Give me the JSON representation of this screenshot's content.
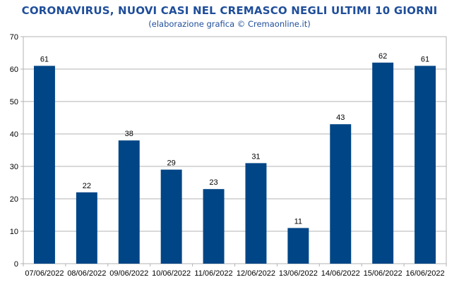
{
  "chart_data": {
    "type": "bar",
    "title": "CORONAVIRUS, NUOVI CASI NEL CREMASCO NEGLI ULTIMI 10 GIORNI",
    "subtitle": "(elaborazione grafica © Cremaonline.it)",
    "categories": [
      "07/06/2022",
      "08/06/2022",
      "09/06/2022",
      "10/06/2022",
      "11/06/2022",
      "12/06/2022",
      "13/06/2022",
      "14/06/2022",
      "15/06/2022",
      "16/06/2022"
    ],
    "values": [
      61,
      22,
      38,
      29,
      23,
      31,
      11,
      43,
      62,
      61
    ],
    "ylim": [
      0,
      70
    ],
    "yticks": [
      0,
      10,
      20,
      30,
      40,
      50,
      60,
      70
    ],
    "grid": true,
    "bar_color": "#004586",
    "title_color": "#1f4e9a"
  }
}
